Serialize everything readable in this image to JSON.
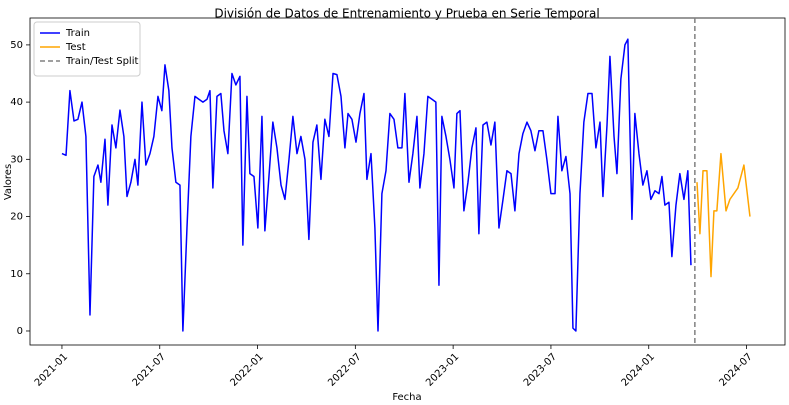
{
  "chart_data": {
    "type": "line",
    "title": "División de Datos de Entrenamiento y Prueba en Serie Temporal",
    "xlabel": "Fecha",
    "ylabel": "Valores",
    "xlim": [
      -1.96,
      44.36
    ],
    "ylim": [
      -2.45,
      54.7
    ],
    "xticks": [
      {
        "value": 0,
        "label": "2021-01"
      },
      {
        "value": 6,
        "label": "2021-07"
      },
      {
        "value": 12,
        "label": "2022-01"
      },
      {
        "value": 18,
        "label": "2022-07"
      },
      {
        "value": 24,
        "label": "2023-01"
      },
      {
        "value": 30,
        "label": "2023-07"
      },
      {
        "value": 36,
        "label": "2024-01"
      },
      {
        "value": 42,
        "label": "2024-07"
      }
    ],
    "yticks": [
      0,
      10,
      20,
      30,
      40,
      50
    ],
    "legend": "upper left",
    "series": [
      {
        "name": "Train",
        "color": "#0000ff",
        "x": [
          0,
          0.25,
          0.49,
          0.74,
          0.98,
          1.23,
          1.47,
          1.72,
          1.96,
          2.21,
          2.39,
          2.64,
          2.82,
          3.07,
          3.31,
          3.56,
          3.8,
          3.99,
          4.23,
          4.48,
          4.66,
          4.91,
          5.15,
          5.4,
          5.64,
          5.89,
          6.13,
          6.32,
          6.56,
          6.75,
          6.99,
          7.24,
          7.42,
          7.67,
          7.91,
          8.16,
          8.4,
          8.65,
          8.9,
          9.08,
          9.26,
          9.51,
          9.75,
          9.94,
          10.18,
          10.43,
          10.67,
          10.92,
          11.1,
          11.35,
          11.53,
          11.78,
          12.02,
          12.27,
          12.45,
          12.7,
          12.94,
          13.19,
          13.44,
          13.68,
          13.93,
          14.17,
          14.42,
          14.66,
          14.91,
          15.15,
          15.4,
          15.64,
          15.89,
          16.13,
          16.38,
          16.63,
          16.87,
          17.12,
          17.36,
          17.55,
          17.79,
          18.04,
          18.28,
          18.53,
          18.71,
          18.96,
          19.2,
          19.39,
          19.63,
          19.88,
          20.12,
          20.37,
          20.61,
          20.86,
          21.04,
          21.29,
          21.53,
          21.78,
          21.96,
          22.21,
          22.45,
          22.7,
          22.94,
          23.13,
          23.31,
          23.56,
          23.8,
          24.05,
          24.23,
          24.42,
          24.66,
          24.91,
          25.15,
          25.4,
          25.58,
          25.83,
          26.07,
          26.32,
          26.56,
          26.81,
          27.06,
          27.3,
          27.55,
          27.79,
          28.04,
          28.28,
          28.53,
          28.77,
          29.02,
          29.26,
          29.51,
          29.75,
          30.0,
          30.25,
          30.43,
          30.67,
          30.92,
          31.17,
          31.35,
          31.53,
          31.78,
          32.02,
          32.27,
          32.52,
          32.76,
          33.01,
          33.19,
          33.44,
          33.62,
          33.87,
          34.05,
          34.29,
          34.54,
          34.72,
          34.97,
          35.15,
          35.4,
          35.64,
          35.89,
          36.13,
          36.38,
          36.63,
          36.81,
          36.99,
          37.24,
          37.42,
          37.67,
          37.91,
          38.16,
          38.4,
          38.59
        ],
        "values": [
          31,
          30.7,
          42,
          36.7,
          37,
          40,
          34,
          2.8,
          27,
          29,
          26,
          33.5,
          22,
          36,
          32,
          38.6,
          34,
          23.5,
          26,
          30,
          25.5,
          40,
          29,
          31,
          34,
          41,
          38.5,
          46.5,
          42,
          32,
          26,
          25.5,
          0,
          18,
          34,
          41,
          40.5,
          40,
          40.5,
          42,
          25,
          41,
          41.5,
          35,
          31,
          45,
          43,
          44.5,
          15,
          41,
          27.5,
          27,
          18,
          37.5,
          17.5,
          27,
          36.5,
          32,
          25.5,
          23,
          30,
          37.5,
          31,
          34,
          30,
          16,
          33,
          36,
          26.5,
          37,
          34,
          45,
          44.8,
          41,
          32,
          38,
          37,
          33,
          38,
          41.5,
          26.5,
          31,
          18,
          0,
          24,
          28,
          38,
          37,
          32,
          32,
          41.5,
          26,
          31,
          37.5,
          25,
          31,
          41,
          40.5,
          40,
          8,
          37.5,
          34,
          30,
          25,
          38,
          38.5,
          21,
          26,
          32,
          35.5,
          17,
          36,
          36.5,
          32.5,
          36.5,
          18,
          23,
          28,
          27.5,
          21,
          31,
          34.5,
          36.5,
          35,
          31.5,
          35,
          35,
          30,
          24,
          24,
          37.5,
          28,
          30.5,
          24,
          0.5,
          0,
          24,
          36.5,
          41.5,
          41.5,
          32,
          36.5,
          23.5,
          36,
          48,
          34,
          27.5,
          44,
          50,
          51,
          19.5,
          38,
          31,
          25.5,
          28,
          23,
          24.5,
          24,
          27,
          22,
          22.5,
          13,
          22,
          27.5,
          23,
          28,
          11.5
        ]
      },
      {
        "name": "Test",
        "color": "#ffa500",
        "x": [
          38.96,
          39.14,
          39.33,
          39.57,
          39.82,
          40.0,
          40.18,
          40.43,
          40.74,
          40.98,
          41.47,
          41.84,
          42.21
        ],
        "values": [
          26,
          17,
          28,
          28,
          9.5,
          21,
          21,
          31,
          21,
          23,
          25,
          29,
          20
        ]
      }
    ],
    "split": {
      "name": "Train/Test Split",
      "x": 38.83,
      "color": "#808080"
    }
  }
}
